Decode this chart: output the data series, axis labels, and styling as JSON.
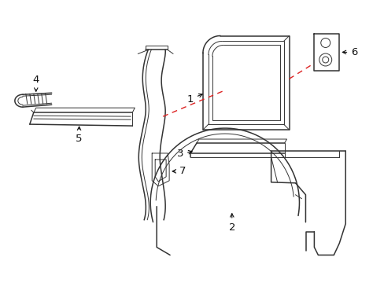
{
  "bg_color": "#ffffff",
  "line_color": "#333333",
  "red_dash_color": "#dd2222",
  "label_color": "#111111",
  "fig_w": 4.89,
  "fig_h": 3.6,
  "dpi": 100
}
